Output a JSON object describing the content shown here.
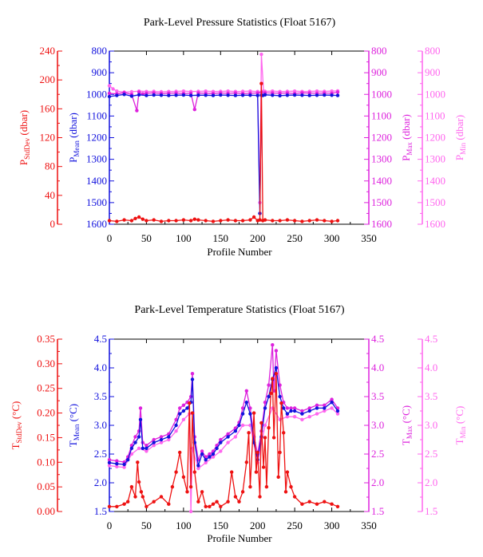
{
  "colors": {
    "red": "#ee1111",
    "blue": "#1111dd",
    "magenta": "#dd22dd",
    "pink": "#ff66ee",
    "black": "#000000"
  },
  "chart_data": [
    {
      "type": "line",
      "title": "Park-Level Pressure Statistics (Float 5167)",
      "xlabel": "Profile Number",
      "xlim": [
        0,
        350
      ],
      "xticks": [
        "0",
        "50",
        "100",
        "150",
        "200",
        "250",
        "300",
        "350"
      ],
      "axes": [
        {
          "side": "left-outer",
          "label": "P",
          "sub": "StdDev",
          "unit": " (dbar)",
          "color": "red",
          "ylim": [
            0,
            240
          ],
          "ticks": [
            "240",
            "200",
            "160",
            "120",
            "80",
            "40",
            "0"
          ]
        },
        {
          "side": "left-inner",
          "label": "P",
          "sub": "Mean",
          "unit": " (dbar)",
          "color": "blue",
          "ylim": [
            1600,
            800
          ],
          "ticks": [
            "800",
            "900",
            "1000",
            "1100",
            "1200",
            "1300",
            "1400",
            "1500",
            "1600"
          ]
        },
        {
          "side": "right-inner",
          "label": "P",
          "sub": "Max",
          "unit": " (dbar)",
          "color": "magenta",
          "ylim": [
            1600,
            800
          ],
          "ticks": [
            "800",
            "900",
            "1000",
            "1100",
            "1200",
            "1300",
            "1400",
            "1500",
            "1600"
          ]
        },
        {
          "side": "right-outer",
          "label": "P",
          "sub": "Min",
          "unit": " (dbar)",
          "color": "pink",
          "ylim": [
            1600,
            800
          ],
          "ticks": [
            "800",
            "900",
            "1000",
            "1100",
            "1200",
            "1300",
            "1400",
            "1500",
            "1600"
          ]
        }
      ],
      "series": [
        {
          "axis": 0,
          "color": "red",
          "x": [
            0,
            10,
            20,
            30,
            35,
            40,
            45,
            50,
            60,
            70,
            80,
            90,
            100,
            110,
            115,
            120,
            130,
            140,
            150,
            160,
            170,
            180,
            190,
            195,
            200,
            203,
            205,
            207,
            210,
            220,
            230,
            240,
            250,
            260,
            270,
            280,
            290,
            300,
            308
          ],
          "y": [
            5,
            4,
            6,
            5,
            8,
            10,
            7,
            5,
            6,
            4,
            5,
            5,
            6,
            5,
            7,
            6,
            5,
            4,
            5,
            6,
            5,
            5,
            6,
            10,
            5,
            6,
            195,
            5,
            6,
            5,
            5,
            6,
            5,
            4,
            5,
            6,
            5,
            4,
            5
          ]
        },
        {
          "axis": 1,
          "color": "blue",
          "x": [
            0,
            10,
            20,
            30,
            40,
            50,
            60,
            70,
            80,
            90,
            100,
            110,
            120,
            130,
            140,
            150,
            160,
            170,
            180,
            190,
            200,
            203,
            205,
            207,
            210,
            220,
            230,
            240,
            250,
            260,
            270,
            280,
            290,
            300,
            308
          ],
          "y": [
            1010,
            1005,
            1000,
            1008,
            1002,
            1005,
            1003,
            1004,
            1005,
            1004,
            1003,
            1005,
            1004,
            1004,
            1005,
            1003,
            1004,
            1005,
            1004,
            1004,
            1005,
            1550,
            1004,
            1005,
            1002,
            1004,
            1006,
            1004,
            1003,
            1004,
            1005,
            1004,
            1003,
            1004,
            1005
          ]
        },
        {
          "axis": 2,
          "color": "magenta",
          "x": [
            0,
            10,
            20,
            30,
            37,
            40,
            45,
            50,
            60,
            70,
            80,
            90,
            100,
            110,
            115,
            120,
            130,
            140,
            150,
            160,
            170,
            180,
            190,
            200,
            205,
            210,
            220,
            230,
            240,
            250,
            260,
            270,
            280,
            290,
            300,
            308
          ],
          "y": [
            995,
            998,
            992,
            1000,
            1075,
            990,
            998,
            995,
            993,
            996,
            995,
            994,
            996,
            995,
            1070,
            994,
            995,
            996,
            994,
            995,
            994,
            996,
            995,
            994,
            990,
            993,
            994,
            995,
            994,
            996,
            993,
            994,
            995,
            994,
            995,
            990
          ]
        },
        {
          "axis": 3,
          "color": "pink",
          "x": [
            0,
            5,
            10,
            20,
            30,
            40,
            50,
            60,
            70,
            80,
            90,
            100,
            110,
            120,
            130,
            140,
            150,
            160,
            170,
            180,
            190,
            200,
            203,
            205,
            208,
            210,
            220,
            230,
            240,
            250,
            260,
            270,
            280,
            290,
            300,
            308
          ],
          "y": [
            960,
            975,
            985,
            990,
            988,
            985,
            987,
            986,
            988,
            987,
            986,
            985,
            987,
            986,
            985,
            987,
            986,
            985,
            987,
            986,
            985,
            987,
            1500,
            815,
            985,
            986,
            985,
            987,
            986,
            985,
            987,
            986,
            985,
            986,
            985,
            984
          ]
        }
      ]
    },
    {
      "type": "line",
      "title": "Park-Level Temperature Statistics (Float 5167)",
      "xlabel": "Profile Number",
      "xlim": [
        0,
        350
      ],
      "xticks": [
        "0",
        "50",
        "100",
        "150",
        "200",
        "250",
        "300",
        "350"
      ],
      "axes": [
        {
          "side": "left-outer",
          "label": "T",
          "sub": "StdDev",
          "unit": " (°C)",
          "color": "red",
          "ylim": [
            0,
            0.35
          ],
          "ticks": [
            "0.35",
            "0.30",
            "0.25",
            "0.20",
            "0.15",
            "0.10",
            "0.05",
            "0.00"
          ]
        },
        {
          "side": "left-inner",
          "label": "T",
          "sub": "Mean",
          "unit": " (°C)",
          "color": "blue",
          "ylim": [
            1.5,
            4.5
          ],
          "ticks": [
            "4.5",
            "4.0",
            "3.5",
            "3.0",
            "2.5",
            "2.0",
            "1.5"
          ]
        },
        {
          "side": "right-inner",
          "label": "T",
          "sub": "Max",
          "unit": " (°C)",
          "color": "magenta",
          "ylim": [
            1.5,
            4.5
          ],
          "ticks": [
            "4.5",
            "4.0",
            "3.5",
            "3.0",
            "2.5",
            "2.0",
            "1.5"
          ]
        },
        {
          "side": "right-outer",
          "label": "T",
          "sub": "Min",
          "unit": " (°C)",
          "color": "pink",
          "ylim": [
            1.5,
            4.5
          ],
          "ticks": [
            "4.5",
            "4.0",
            "3.5",
            "3.0",
            "2.5",
            "2.0",
            "1.5"
          ]
        }
      ],
      "series": [
        {
          "axis": 0,
          "color": "red",
          "x": [
            0,
            10,
            20,
            25,
            30,
            35,
            38,
            40,
            43,
            45,
            50,
            60,
            70,
            80,
            85,
            90,
            95,
            100,
            105,
            108,
            110,
            112,
            115,
            120,
            125,
            130,
            135,
            140,
            145,
            150,
            160,
            165,
            170,
            175,
            180,
            185,
            188,
            190,
            195,
            198,
            200,
            203,
            205,
            208,
            210,
            212,
            215,
            218,
            220,
            222,
            225,
            228,
            230,
            232,
            235,
            238,
            240,
            245,
            250,
            260,
            270,
            280,
            290,
            300,
            308
          ],
          "y": [
            0.01,
            0.01,
            0.015,
            0.02,
            0.05,
            0.03,
            0.1,
            0.06,
            0.04,
            0.03,
            0.01,
            0.02,
            0.03,
            0.015,
            0.05,
            0.08,
            0.12,
            0.07,
            0.04,
            0.22,
            0.05,
            0.2,
            0.08,
            0.02,
            0.04,
            0.01,
            0.01,
            0.015,
            0.02,
            0.01,
            0.02,
            0.08,
            0.03,
            0.02,
            0.04,
            0.1,
            0.16,
            0.05,
            0.2,
            0.08,
            0.12,
            0.03,
            0.18,
            0.09,
            0.15,
            0.05,
            0.17,
            0.24,
            0.27,
            0.15,
            0.28,
            0.07,
            0.12,
            0.22,
            0.16,
            0.04,
            0.08,
            0.05,
            0.03,
            0.015,
            0.02,
            0.015,
            0.02,
            0.015,
            0.01
          ]
        },
        {
          "axis": 1,
          "color": "blue",
          "x": [
            0,
            10,
            20,
            25,
            30,
            35,
            40,
            42,
            45,
            50,
            60,
            70,
            80,
            90,
            95,
            100,
            105,
            110,
            112,
            115,
            120,
            125,
            130,
            135,
            140,
            145,
            150,
            160,
            170,
            175,
            180,
            185,
            190,
            195,
            200,
            205,
            210,
            215,
            220,
            225,
            230,
            235,
            240,
            245,
            250,
            260,
            270,
            280,
            290,
            300,
            308
          ],
          "y": [
            2.35,
            2.33,
            2.32,
            2.4,
            2.6,
            2.7,
            2.8,
            3.1,
            2.6,
            2.6,
            2.7,
            2.75,
            2.8,
            3.0,
            3.2,
            3.25,
            3.3,
            3.4,
            3.8,
            2.7,
            2.3,
            2.5,
            2.4,
            2.45,
            2.5,
            2.6,
            2.7,
            2.8,
            2.9,
            3.0,
            3.2,
            3.4,
            3.2,
            2.7,
            2.4,
            2.8,
            3.3,
            3.5,
            3.8,
            4.0,
            3.5,
            3.3,
            3.2,
            3.25,
            3.25,
            3.2,
            3.25,
            3.3,
            3.3,
            3.4,
            3.25
          ]
        },
        {
          "axis": 2,
          "color": "magenta",
          "x": [
            0,
            10,
            20,
            25,
            30,
            35,
            40,
            42,
            45,
            50,
            60,
            70,
            80,
            90,
            95,
            100,
            105,
            110,
            112,
            115,
            120,
            125,
            130,
            135,
            140,
            145,
            150,
            160,
            170,
            175,
            180,
            185,
            190,
            195,
            200,
            205,
            210,
            215,
            220,
            222,
            225,
            230,
            235,
            240,
            245,
            250,
            260,
            270,
            280,
            290,
            300,
            308
          ],
          "y": [
            2.4,
            2.38,
            2.36,
            2.45,
            2.65,
            2.8,
            2.9,
            3.3,
            2.7,
            2.65,
            2.75,
            2.8,
            2.85,
            3.1,
            3.3,
            3.35,
            3.4,
            3.5,
            3.9,
            2.8,
            2.4,
            2.55,
            2.45,
            2.5,
            2.55,
            2.65,
            2.75,
            2.85,
            2.95,
            3.05,
            3.3,
            3.6,
            3.3,
            2.8,
            2.5,
            2.9,
            3.4,
            3.7,
            4.4,
            3.6,
            4.3,
            3.7,
            3.4,
            3.3,
            3.3,
            3.3,
            3.25,
            3.3,
            3.35,
            3.35,
            3.45,
            3.3
          ]
        },
        {
          "axis": 3,
          "color": "pink",
          "x": [
            0,
            10,
            20,
            30,
            40,
            50,
            60,
            70,
            80,
            90,
            100,
            108,
            110,
            112,
            120,
            130,
            140,
            150,
            160,
            170,
            180,
            190,
            200,
            210,
            220,
            230,
            240,
            250,
            260,
            270,
            280,
            290,
            300,
            308
          ],
          "y": [
            2.3,
            2.28,
            2.27,
            2.5,
            2.6,
            2.55,
            2.65,
            2.7,
            2.75,
            2.9,
            3.1,
            3.2,
            1.5,
            2.6,
            2.25,
            2.35,
            2.45,
            2.55,
            2.7,
            2.8,
            3.0,
            3.0,
            2.35,
            3.0,
            3.3,
            3.1,
            3.15,
            3.15,
            3.1,
            3.15,
            3.2,
            3.25,
            3.3,
            3.2
          ]
        }
      ]
    }
  ]
}
